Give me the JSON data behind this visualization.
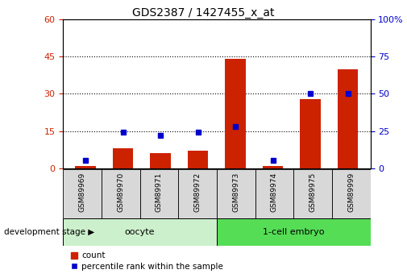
{
  "title": "GDS2387 / 1427455_x_at",
  "samples": [
    "GSM89969",
    "GSM89970",
    "GSM89971",
    "GSM89972",
    "GSM89973",
    "GSM89974",
    "GSM89975",
    "GSM89999"
  ],
  "counts": [
    1,
    8,
    6,
    7,
    44,
    1,
    28,
    40
  ],
  "percentiles": [
    5,
    24,
    22,
    24,
    28,
    5,
    50,
    50
  ],
  "bar_color": "#cc2200",
  "point_color": "#0000cc",
  "left_ylim": [
    0,
    60
  ],
  "right_ylim": [
    0,
    100
  ],
  "left_yticks": [
    0,
    15,
    30,
    45,
    60
  ],
  "right_yticks": [
    0,
    25,
    50,
    75,
    100
  ],
  "left_tick_color": "#cc2200",
  "right_tick_color": "#0000cc",
  "grid_linestyle": "dotted",
  "grid_color": "black",
  "grid_linewidth": 0.8,
  "bar_width": 0.55,
  "label_count": "count",
  "label_percentile": "percentile rank within the sample",
  "dev_stage_label": "development stage",
  "oocyte_label": "oocyte",
  "embryo_label": "1-cell embryo",
  "oocyte_color": "#ccf0cc",
  "embryo_color": "#55dd55",
  "sample_box_color": "#d8d8d8",
  "title_fontsize": 10,
  "axis_fontsize": 8,
  "sample_fontsize": 6.5,
  "group_fontsize": 8,
  "legend_fontsize": 7.5,
  "dev_stage_fontsize": 7.5
}
